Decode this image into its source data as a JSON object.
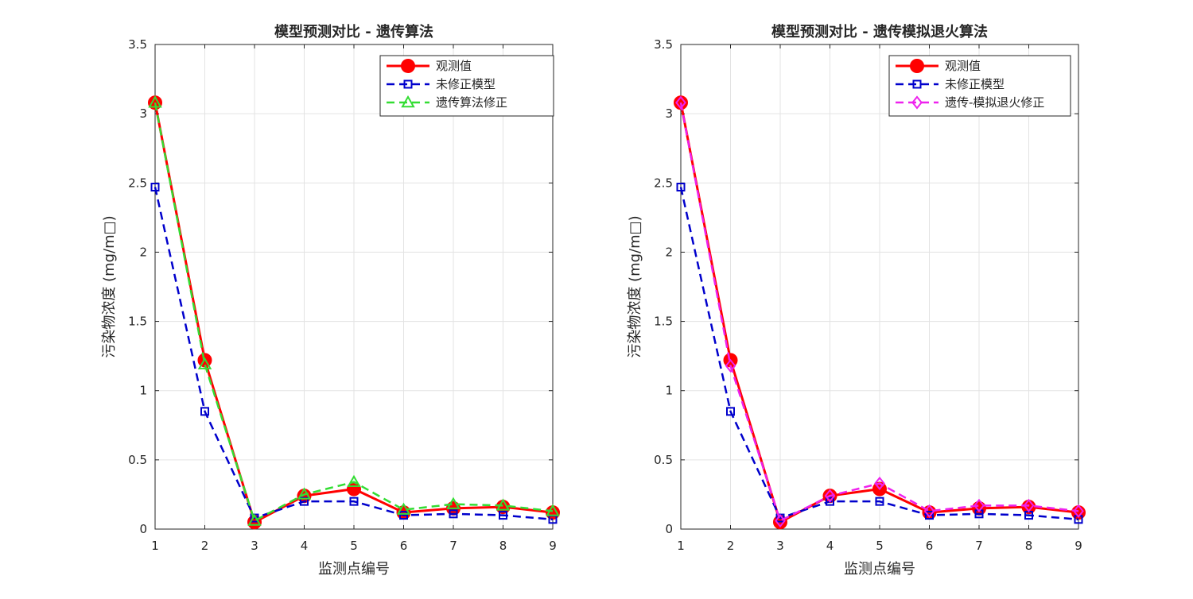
{
  "chart_data": [
    {
      "type": "line",
      "title": "模型预测对比 - 遗传算法",
      "xlabel": "监测点编号",
      "ylabel": "污染物浓度 (mg/m□)",
      "x": [
        1,
        2,
        3,
        4,
        5,
        6,
        7,
        8,
        9
      ],
      "xticks": [
        "1",
        "2",
        "3",
        "4",
        "5",
        "6",
        "7",
        "8",
        "9"
      ],
      "yticks": [
        "0",
        "0.5",
        "1",
        "1.5",
        "2",
        "2.5",
        "3",
        "3.5"
      ],
      "xlim": [
        1,
        9
      ],
      "ylim": [
        0,
        3.5
      ],
      "grid": true,
      "legend_position": "top-right",
      "series": [
        {
          "name": "观测值",
          "color": "#ff0000",
          "marker": "circle",
          "line_style": "solid",
          "values": [
            3.08,
            1.22,
            0.05,
            0.24,
            0.29,
            0.12,
            0.15,
            0.16,
            0.12
          ]
        },
        {
          "name": "未修正模型",
          "color": "#0000cc",
          "marker": "square",
          "line_style": "dashed",
          "values": [
            2.47,
            0.85,
            0.08,
            0.2,
            0.2,
            0.1,
            0.11,
            0.1,
            0.07
          ]
        },
        {
          "name": "遗传算法修正",
          "color": "#33dd33",
          "marker": "triangle",
          "line_style": "dashed",
          "values": [
            3.08,
            1.19,
            0.06,
            0.25,
            0.34,
            0.14,
            0.18,
            0.17,
            0.13
          ]
        }
      ]
    },
    {
      "type": "line",
      "title": "模型预测对比 - 遗传模拟退火算法",
      "xlabel": "监测点编号",
      "ylabel": "污染物浓度 (mg/m□)",
      "x": [
        1,
        2,
        3,
        4,
        5,
        6,
        7,
        8,
        9
      ],
      "xticks": [
        "1",
        "2",
        "3",
        "4",
        "5",
        "6",
        "7",
        "8",
        "9"
      ],
      "yticks": [
        "0",
        "0.5",
        "1",
        "1.5",
        "2",
        "2.5",
        "3",
        "3.5"
      ],
      "xlim": [
        1,
        9
      ],
      "ylim": [
        0,
        3.5
      ],
      "grid": true,
      "legend_position": "top-right",
      "series": [
        {
          "name": "观测值",
          "color": "#ff0000",
          "marker": "circle",
          "line_style": "solid",
          "values": [
            3.08,
            1.22,
            0.05,
            0.24,
            0.29,
            0.12,
            0.15,
            0.16,
            0.12
          ]
        },
        {
          "name": "未修正模型",
          "color": "#0000cc",
          "marker": "square",
          "line_style": "dashed",
          "values": [
            2.47,
            0.85,
            0.08,
            0.2,
            0.2,
            0.1,
            0.11,
            0.1,
            0.07
          ]
        },
        {
          "name": "遗传-模拟退火修正",
          "color": "#ee22ee",
          "marker": "diamond",
          "line_style": "dashed",
          "values": [
            3.08,
            1.18,
            0.06,
            0.24,
            0.33,
            0.13,
            0.17,
            0.17,
            0.13
          ]
        }
      ]
    }
  ]
}
